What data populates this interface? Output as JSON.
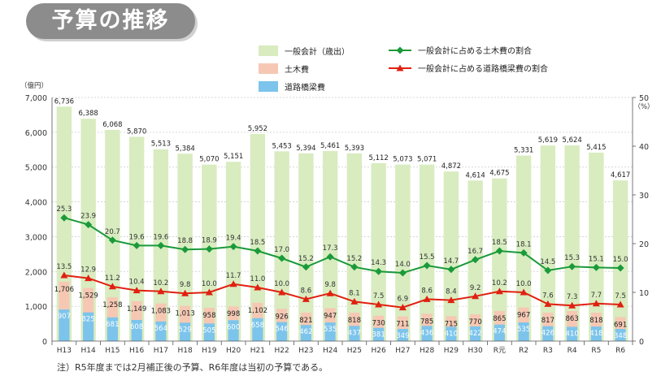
{
  "title": "予算の推移",
  "footnote": "注）R5年度までは2月補正後の予算、R6年度は当初の予算である。",
  "chart_data": {
    "type": "bar",
    "categories": [
      "H13",
      "H14",
      "H15",
      "H16",
      "H17",
      "H18",
      "H19",
      "H20",
      "H21",
      "H22",
      "H23",
      "H24",
      "H25",
      "H26",
      "H27",
      "H28",
      "H29",
      "H30",
      "R元",
      "R2",
      "R3",
      "R4",
      "R5",
      "R6"
    ],
    "y_left_unit": "（億円）",
    "y_left_ticks": [
      "0",
      "1,000",
      "2,000",
      "3,000",
      "4,000",
      "5,000",
      "6,000",
      "7,000"
    ],
    "ylim_left": [
      0,
      7000
    ],
    "y_right_unit": "（%）",
    "y_right_ticks": [
      "0",
      "10",
      "20",
      "30",
      "40",
      "50"
    ],
    "ylim_right": [
      0,
      50
    ],
    "series": [
      {
        "name": "一般会計（歳出）",
        "kind": "bar",
        "color": "#d8ecc0",
        "values": [
          6736,
          6388,
          6068,
          5870,
          5513,
          5384,
          5070,
          5151,
          5952,
          5453,
          5394,
          5461,
          5393,
          5112,
          5073,
          5071,
          4872,
          4614,
          4675,
          5331,
          5619,
          5624,
          5415,
          4617
        ],
        "labels": [
          "6,736",
          "6,388",
          "6,068",
          "5,870",
          "5,513",
          "5,384",
          "5,070",
          "5,151",
          "5,952",
          "5,453",
          "5,394",
          "5,461",
          "5,393",
          "5,112",
          "5,073",
          "5,071",
          "4,872",
          "4,614",
          "4,675",
          "5,331",
          "5,619",
          "5,624",
          "5,415",
          "4,617"
        ]
      },
      {
        "name": "土木費",
        "kind": "bar",
        "color": "#f6c8b4",
        "values": [
          1706,
          1529,
          1258,
          1149,
          1083,
          1013,
          958,
          998,
          1102,
          926,
          821,
          947,
          818,
          730,
          711,
          785,
          715,
          770,
          865,
          967,
          817,
          863,
          818,
          691
        ],
        "labels": [
          "1,706",
          "1,529",
          "1,258",
          "1,149",
          "1,083",
          "1,013",
          "958",
          "998",
          "1,102",
          "926",
          "821",
          "947",
          "818",
          "730",
          "711",
          "785",
          "715",
          "770",
          "865",
          "967",
          "817",
          "863",
          "818",
          "691"
        ]
      },
      {
        "name": "道路橋梁費",
        "kind": "bar",
        "color": "#7cc4ec",
        "values": [
          907,
          825,
          681,
          608,
          564,
          529,
          505,
          600,
          658,
          546,
          462,
          535,
          437,
          381,
          349,
          436,
          410,
          422,
          474,
          535,
          426,
          410,
          418,
          348
        ],
        "labels": [
          "907",
          "825",
          "681",
          "608",
          "564",
          "529",
          "505",
          "600",
          "658",
          "546",
          "462",
          "535",
          "437",
          "381",
          "349",
          "436",
          "410",
          "422",
          "474",
          "535",
          "426",
          "410",
          "418",
          "348"
        ]
      },
      {
        "name": "一般会計に占める土木費の割合",
        "kind": "line",
        "color": "#1a9a3a",
        "values": [
          25.3,
          23.9,
          20.7,
          19.6,
          19.6,
          18.8,
          18.9,
          19.4,
          18.5,
          17.0,
          15.2,
          17.3,
          15.2,
          14.3,
          14.0,
          15.5,
          14.7,
          16.7,
          18.5,
          18.1,
          14.5,
          15.3,
          15.1,
          15.0
        ],
        "labels": [
          "25.3",
          "23.9",
          "20.7",
          "19.6",
          "19.6",
          "18.8",
          "18.9",
          "19.4",
          "18.5",
          "17.0",
          "15.2",
          "17.3",
          "15.2",
          "14.3",
          "14.0",
          "15.5",
          "14.7",
          "16.7",
          "18.5",
          "18.1",
          "14.5",
          "15.3",
          "15.1",
          "15.0"
        ]
      },
      {
        "name": "一般会計に占める道路橋梁費の割合",
        "kind": "line",
        "color": "#e02010",
        "values": [
          13.5,
          12.9,
          11.2,
          10.4,
          10.2,
          9.8,
          10.0,
          11.7,
          11.0,
          10.0,
          8.6,
          9.8,
          8.1,
          7.5,
          6.9,
          8.6,
          8.4,
          9.2,
          10.2,
          10.0,
          7.6,
          7.3,
          7.7,
          7.5
        ],
        "labels": [
          "13.5",
          "12.9",
          "11.2",
          "10.4",
          "10.2",
          "9.8",
          "10.0",
          "11.7",
          "11.0",
          "10.0",
          "8.6",
          "9.8",
          "8.1",
          "7.5",
          "6.9",
          "8.6",
          "8.4",
          "9.2",
          "10.2",
          "10.0",
          "7.6",
          "7.3",
          "7.7",
          "7.5"
        ]
      }
    ]
  }
}
